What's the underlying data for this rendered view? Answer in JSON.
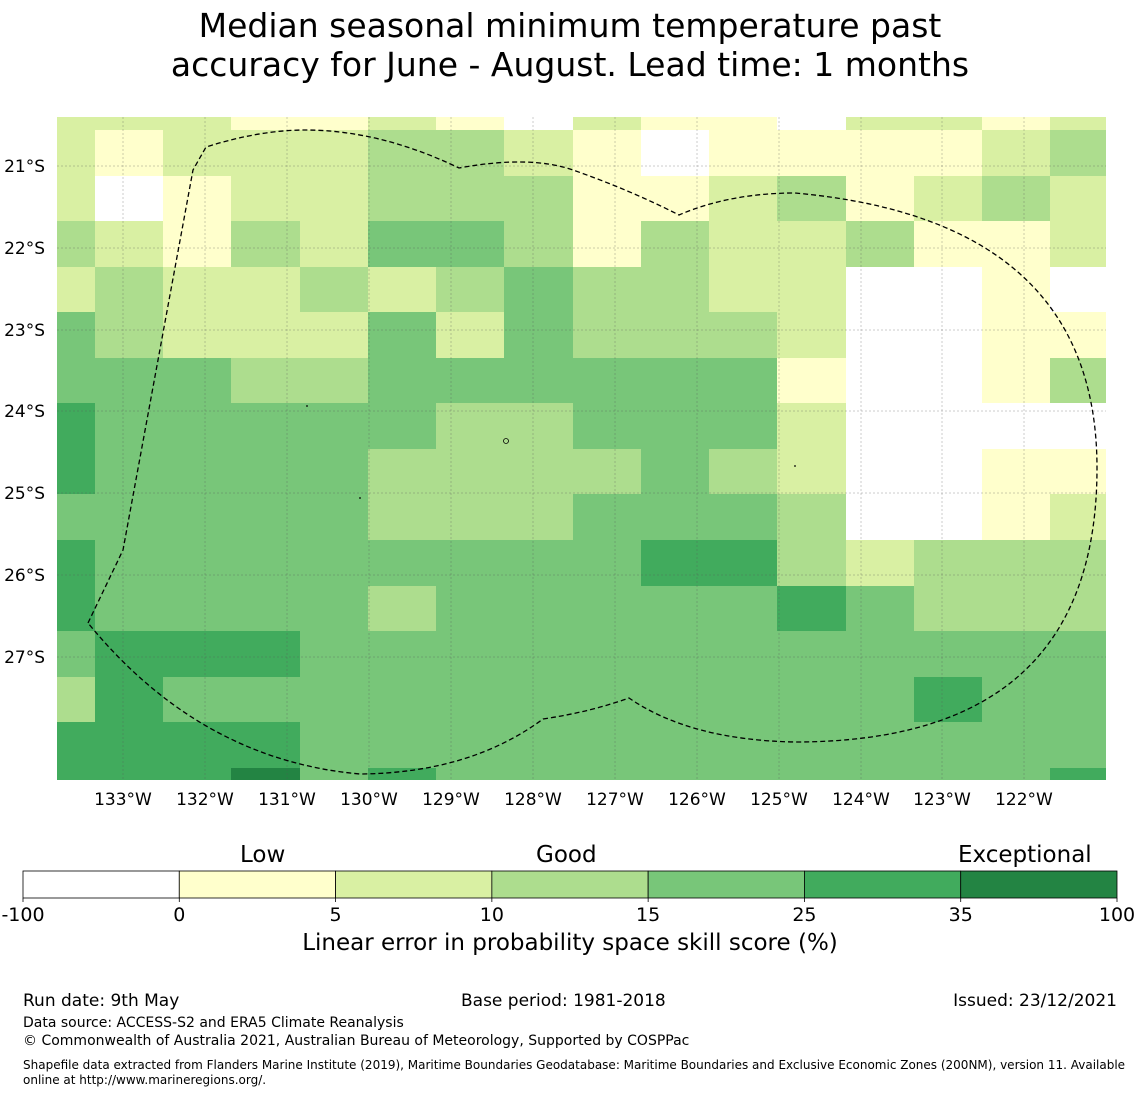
{
  "title_line1": "Median seasonal minimum temperature past",
  "title_line2": "accuracy for June - August. Lead time: 1 months",
  "chart_data": {
    "type": "heatmap",
    "x_ticks": [
      "133°W",
      "132°W",
      "131°W",
      "130°W",
      "129°W",
      "128°W",
      "127°W",
      "126°W",
      "125°W",
      "124°W",
      "123°W",
      "122°W"
    ],
    "y_ticks": [
      "21°S",
      "22°S",
      "23°S",
      "24°S",
      "25°S",
      "26°S",
      "27°S"
    ],
    "grid": true,
    "legend": {
      "headings": [
        "Low",
        "Good",
        "Exceptional"
      ],
      "boundaries": [
        "-100",
        "0",
        "5",
        "10",
        "15",
        "25",
        "35",
        "100"
      ],
      "colors": [
        "#ffffff",
        "#ffffcc",
        "#d9f0a3",
        "#addd8e",
        "#78c679",
        "#41ab5d",
        "#238443"
      ],
      "label": "Linear error in probability space skill score (%)"
    },
    "cell_classes": [
      [
        2,
        2,
        2,
        1,
        1,
        2,
        1,
        0,
        2,
        1,
        1,
        0,
        2,
        2,
        1,
        2
      ],
      [
        2,
        1,
        2,
        2,
        2,
        3,
        3,
        2,
        1,
        0,
        1,
        1,
        1,
        1,
        2,
        3
      ],
      [
        2,
        0,
        1,
        2,
        2,
        3,
        3,
        3,
        1,
        1,
        2,
        3,
        1,
        2,
        3,
        2
      ],
      [
        3,
        2,
        1,
        3,
        2,
        4,
        4,
        3,
        1,
        3,
        2,
        2,
        3,
        1,
        1,
        2
      ],
      [
        2,
        3,
        2,
        2,
        3,
        2,
        3,
        4,
        3,
        3,
        2,
        2,
        0,
        0,
        1,
        0
      ],
      [
        4,
        3,
        2,
        2,
        2,
        4,
        2,
        4,
        3,
        3,
        3,
        2,
        0,
        0,
        1,
        1
      ],
      [
        4,
        4,
        4,
        3,
        3,
        4,
        4,
        4,
        4,
        4,
        4,
        1,
        0,
        0,
        1,
        3
      ],
      [
        5,
        4,
        4,
        4,
        4,
        4,
        3,
        3,
        4,
        4,
        4,
        2,
        0,
        0,
        0,
        0
      ],
      [
        5,
        4,
        4,
        4,
        4,
        3,
        3,
        3,
        3,
        4,
        3,
        2,
        0,
        0,
        1,
        1
      ],
      [
        4,
        4,
        4,
        4,
        4,
        3,
        3,
        3,
        4,
        4,
        4,
        3,
        0,
        0,
        1,
        2
      ],
      [
        5,
        4,
        4,
        4,
        4,
        4,
        4,
        4,
        4,
        5,
        5,
        3,
        2,
        3,
        3,
        3
      ],
      [
        5,
        4,
        4,
        4,
        4,
        3,
        4,
        4,
        4,
        4,
        4,
        5,
        4,
        3,
        3,
        3
      ],
      [
        4,
        5,
        5,
        5,
        4,
        4,
        4,
        4,
        4,
        4,
        4,
        4,
        4,
        4,
        4,
        4
      ],
      [
        3,
        5,
        4,
        4,
        4,
        4,
        4,
        4,
        4,
        4,
        4,
        4,
        4,
        5,
        4,
        4
      ],
      [
        5,
        5,
        5,
        5,
        4,
        4,
        4,
        4,
        4,
        4,
        4,
        4,
        4,
        4,
        4,
        4
      ],
      [
        5,
        5,
        5,
        6,
        4,
        5,
        4,
        4,
        4,
        4,
        4,
        4,
        4,
        4,
        4,
        5
      ]
    ]
  },
  "footer": {
    "run_date": "Run date: 9th May",
    "base_period": "Base period: 1981-2018",
    "issued": "Issued: 23/12/2021",
    "data_source": "Data source: ACCESS-S2 and ERA5 Climate Reanalysis",
    "copyright": "© Commonwealth of Australia 2021, Australian Bureau of Meteorology, Supported by COSPPac",
    "shapefile": "Shapefile data extracted from Flanders Marine Institute (2019), Maritime Boundaries Geodatabase: Maritime Boundaries and Exclusive Economic Zones (200NM), version 11. Available online at http://www.marineregions.org/."
  }
}
